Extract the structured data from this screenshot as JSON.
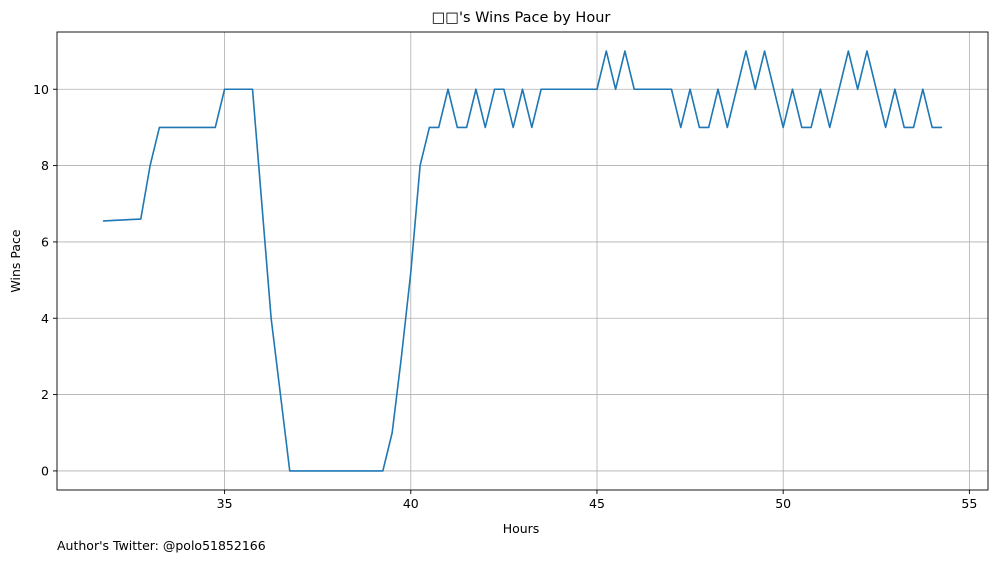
{
  "chart_data": {
    "type": "line",
    "title": "□□'s Wins Pace by Hour",
    "xlabel": "Hours",
    "ylabel": "Wins Pace",
    "xlim": [
      30.5,
      55.5
    ],
    "ylim": [
      -0.5,
      11.5
    ],
    "xticks": [
      35,
      40,
      45,
      50,
      55
    ],
    "yticks": [
      0,
      2,
      4,
      6,
      8,
      10
    ],
    "grid": true,
    "legend": "none",
    "line_color": "#1f77b4",
    "series": [
      {
        "x": [
          31.75,
          32.75,
          33.0,
          33.25,
          33.5,
          33.75,
          34.0,
          34.25,
          34.5,
          34.75,
          35.0,
          35.25,
          35.5,
          35.75,
          36.0,
          36.25,
          36.5,
          36.75,
          37.0,
          37.25,
          37.5,
          37.75,
          38.0,
          38.25,
          38.5,
          38.75,
          39.0,
          39.25,
          39.5,
          39.75,
          40.0,
          40.25,
          40.5,
          40.75,
          41.0,
          41.25,
          41.5,
          41.75,
          42.0,
          42.25,
          42.5,
          42.75,
          43.0,
          43.25,
          43.5,
          43.75,
          44.0,
          44.25,
          44.5,
          44.75,
          45.0,
          45.25,
          45.5,
          45.75,
          46.0,
          46.25,
          46.5,
          46.75,
          47.0,
          47.25,
          47.5,
          47.75,
          48.0,
          48.25,
          48.5,
          48.75,
          49.0,
          49.25,
          49.5,
          49.75,
          50.0,
          50.25,
          50.5,
          50.75,
          51.0,
          51.25,
          51.5,
          51.75,
          52.0,
          52.25,
          52.5,
          52.75,
          53.0,
          53.25,
          53.5,
          53.75,
          54.0,
          54.25
        ],
        "y": [
          6.55,
          6.6,
          8.0,
          9.0,
          9.0,
          9.0,
          9.0,
          9.0,
          9.0,
          9.0,
          10.0,
          10.0,
          10.0,
          10.0,
          7.0,
          4.0,
          2.0,
          0.0,
          0.0,
          0.0,
          0.0,
          0.0,
          0.0,
          0.0,
          0.0,
          0.0,
          0.0,
          0.0,
          1.0,
          3.0,
          5.2,
          8.0,
          9.0,
          9.0,
          10.0,
          9.0,
          9.0,
          10.0,
          9.0,
          10.0,
          10.0,
          9.0,
          10.0,
          9.0,
          10.0,
          10.0,
          10.0,
          10.0,
          10.0,
          10.0,
          10.0,
          11.0,
          10.0,
          11.0,
          10.0,
          10.0,
          10.0,
          10.0,
          10.0,
          9.0,
          10.0,
          9.0,
          9.0,
          10.0,
          9.0,
          10.0,
          11.0,
          10.0,
          11.0,
          10.0,
          9.0,
          10.0,
          9.0,
          9.0,
          10.0,
          9.0,
          10.0,
          11.0,
          10.0,
          11.0,
          10.0,
          9.0,
          10.0,
          9.0,
          9.0,
          10.0,
          9.0,
          9.0
        ]
      }
    ]
  },
  "footer": {
    "credit": "Author's Twitter: @polo51852166"
  }
}
